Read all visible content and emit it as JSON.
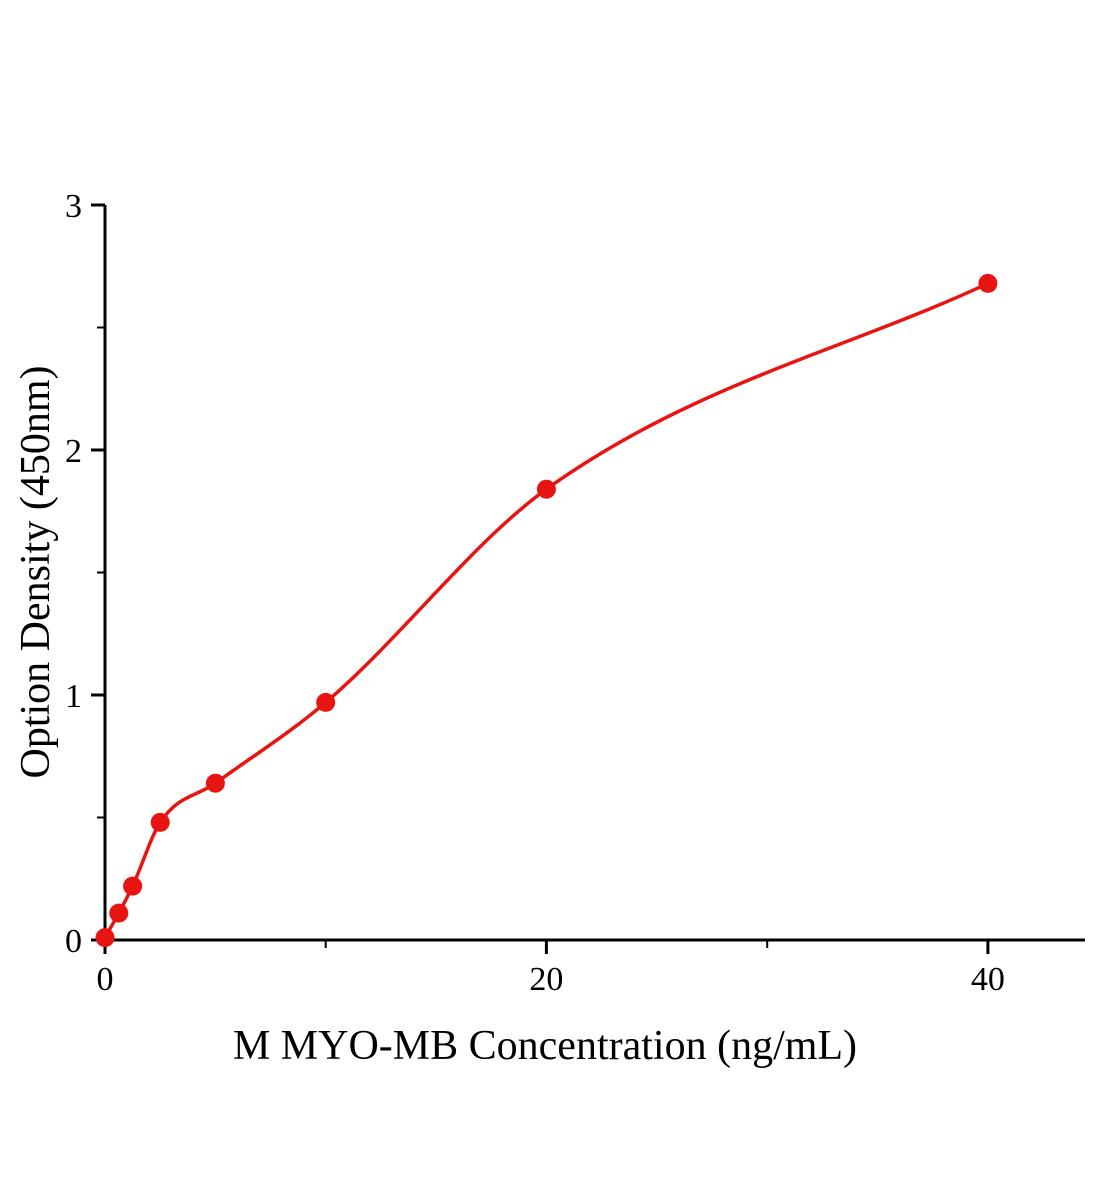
{
  "chart_data": {
    "type": "scatter",
    "title": "",
    "xlabel": "M MYO-MB Concentration (ng/mL)",
    "ylabel": "Option Density (450nm)",
    "points": [
      {
        "x": 0,
        "y": 0.01
      },
      {
        "x": 0.625,
        "y": 0.11
      },
      {
        "x": 1.25,
        "y": 0.22
      },
      {
        "x": 2.5,
        "y": 0.48
      },
      {
        "x": 5,
        "y": 0.64
      },
      {
        "x": 10,
        "y": 0.97
      },
      {
        "x": 20,
        "y": 1.84
      },
      {
        "x": 40,
        "y": 2.68
      }
    ],
    "fit_curve": true,
    "xlim": [
      0,
      44.4
    ],
    "ylim": [
      0,
      3
    ],
    "x_major_ticks": [
      0,
      20,
      40
    ],
    "x_minor_ticks": [
      10,
      30
    ],
    "y_major_ticks": [
      0,
      1,
      2,
      3
    ],
    "y_minor_ticks": [
      0.5,
      1.5,
      2.5
    ],
    "grid": false,
    "legend": null,
    "tick_direction": "out",
    "marker_color": "#e81412",
    "line_color": "#e81412",
    "axis_color": "#000000",
    "background_color": "#ffffff"
  }
}
